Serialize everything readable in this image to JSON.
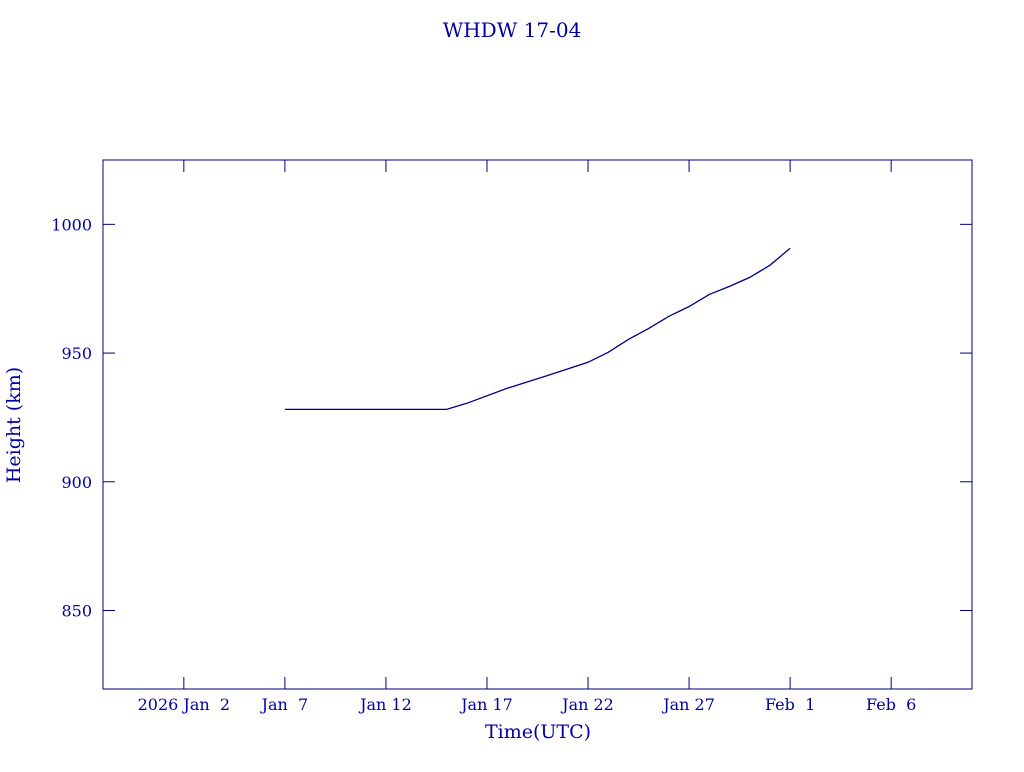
{
  "chart_data": {
    "type": "line",
    "title": "WHDW 17-04",
    "x_label": "Time(UTC)",
    "y_label": "Height (km)",
    "x": [
      "2026-01-07",
      "2026-01-15",
      "2026-01-16",
      "2026-01-18",
      "2026-01-20",
      "2026-01-22",
      "2026-01-23",
      "2026-01-24",
      "2026-01-25",
      "2026-01-26",
      "2026-01-27",
      "2026-01-28",
      "2026-01-29",
      "2026-01-30",
      "2026-01-31",
      "2026-02-01"
    ],
    "series": [
      {
        "name": "WHDW 17-04",
        "color": "#000080",
        "values": [
          928.1,
          928.1,
          930.5,
          936.3,
          941.3,
          946.4,
          950.3,
          955.3,
          959.6,
          964.3,
          968.1,
          972.8,
          975.9,
          979.4,
          984.1,
          990.7
        ]
      }
    ],
    "xlim": [
      "2025-12-29",
      "2026-02-10"
    ],
    "xticks": [
      {
        "value": "2026-01-02",
        "label": "2026 Jan  2"
      },
      {
        "value": "2026-01-07",
        "label": "Jan  7"
      },
      {
        "value": "2026-01-12",
        "label": "Jan 12"
      },
      {
        "value": "2026-01-17",
        "label": "Jan 17"
      },
      {
        "value": "2026-01-22",
        "label": "Jan 22"
      },
      {
        "value": "2026-01-27",
        "label": "Jan 27"
      },
      {
        "value": "2026-02-01",
        "label": "Feb  1"
      },
      {
        "value": "2026-02-06",
        "label": "Feb  6"
      }
    ],
    "ylim": [
      819.5,
      1025
    ],
    "yticks": [
      850,
      900,
      950,
      1000
    ],
    "grid": false
  }
}
